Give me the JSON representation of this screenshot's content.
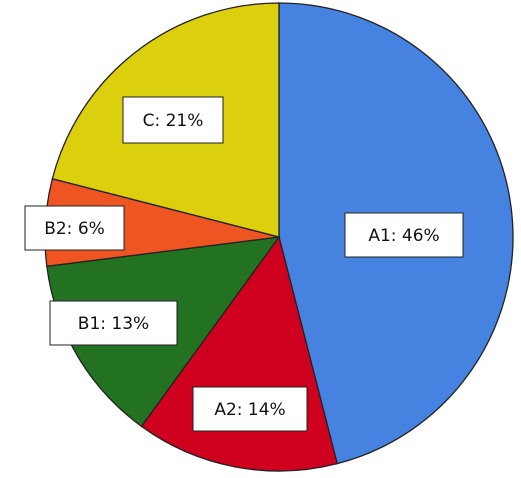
{
  "chart_data": {
    "type": "pie",
    "title": "",
    "start": "top, clockwise",
    "slices": [
      {
        "name": "A1",
        "value": 46,
        "label": "A1: 46%",
        "color": "#4682E0"
      },
      {
        "name": "A2",
        "value": 14,
        "label": "A2: 14%",
        "color": "#D0011E"
      },
      {
        "name": "B1",
        "value": 13,
        "label": "B1: 13%",
        "color": "#237222"
      },
      {
        "name": "B2",
        "value": 6,
        "label": "B2: 6%",
        "color": "#EE5522"
      },
      {
        "name": "C",
        "value": 21,
        "label": "C: 21%",
        "color": "#DCCF0E"
      }
    ]
  }
}
